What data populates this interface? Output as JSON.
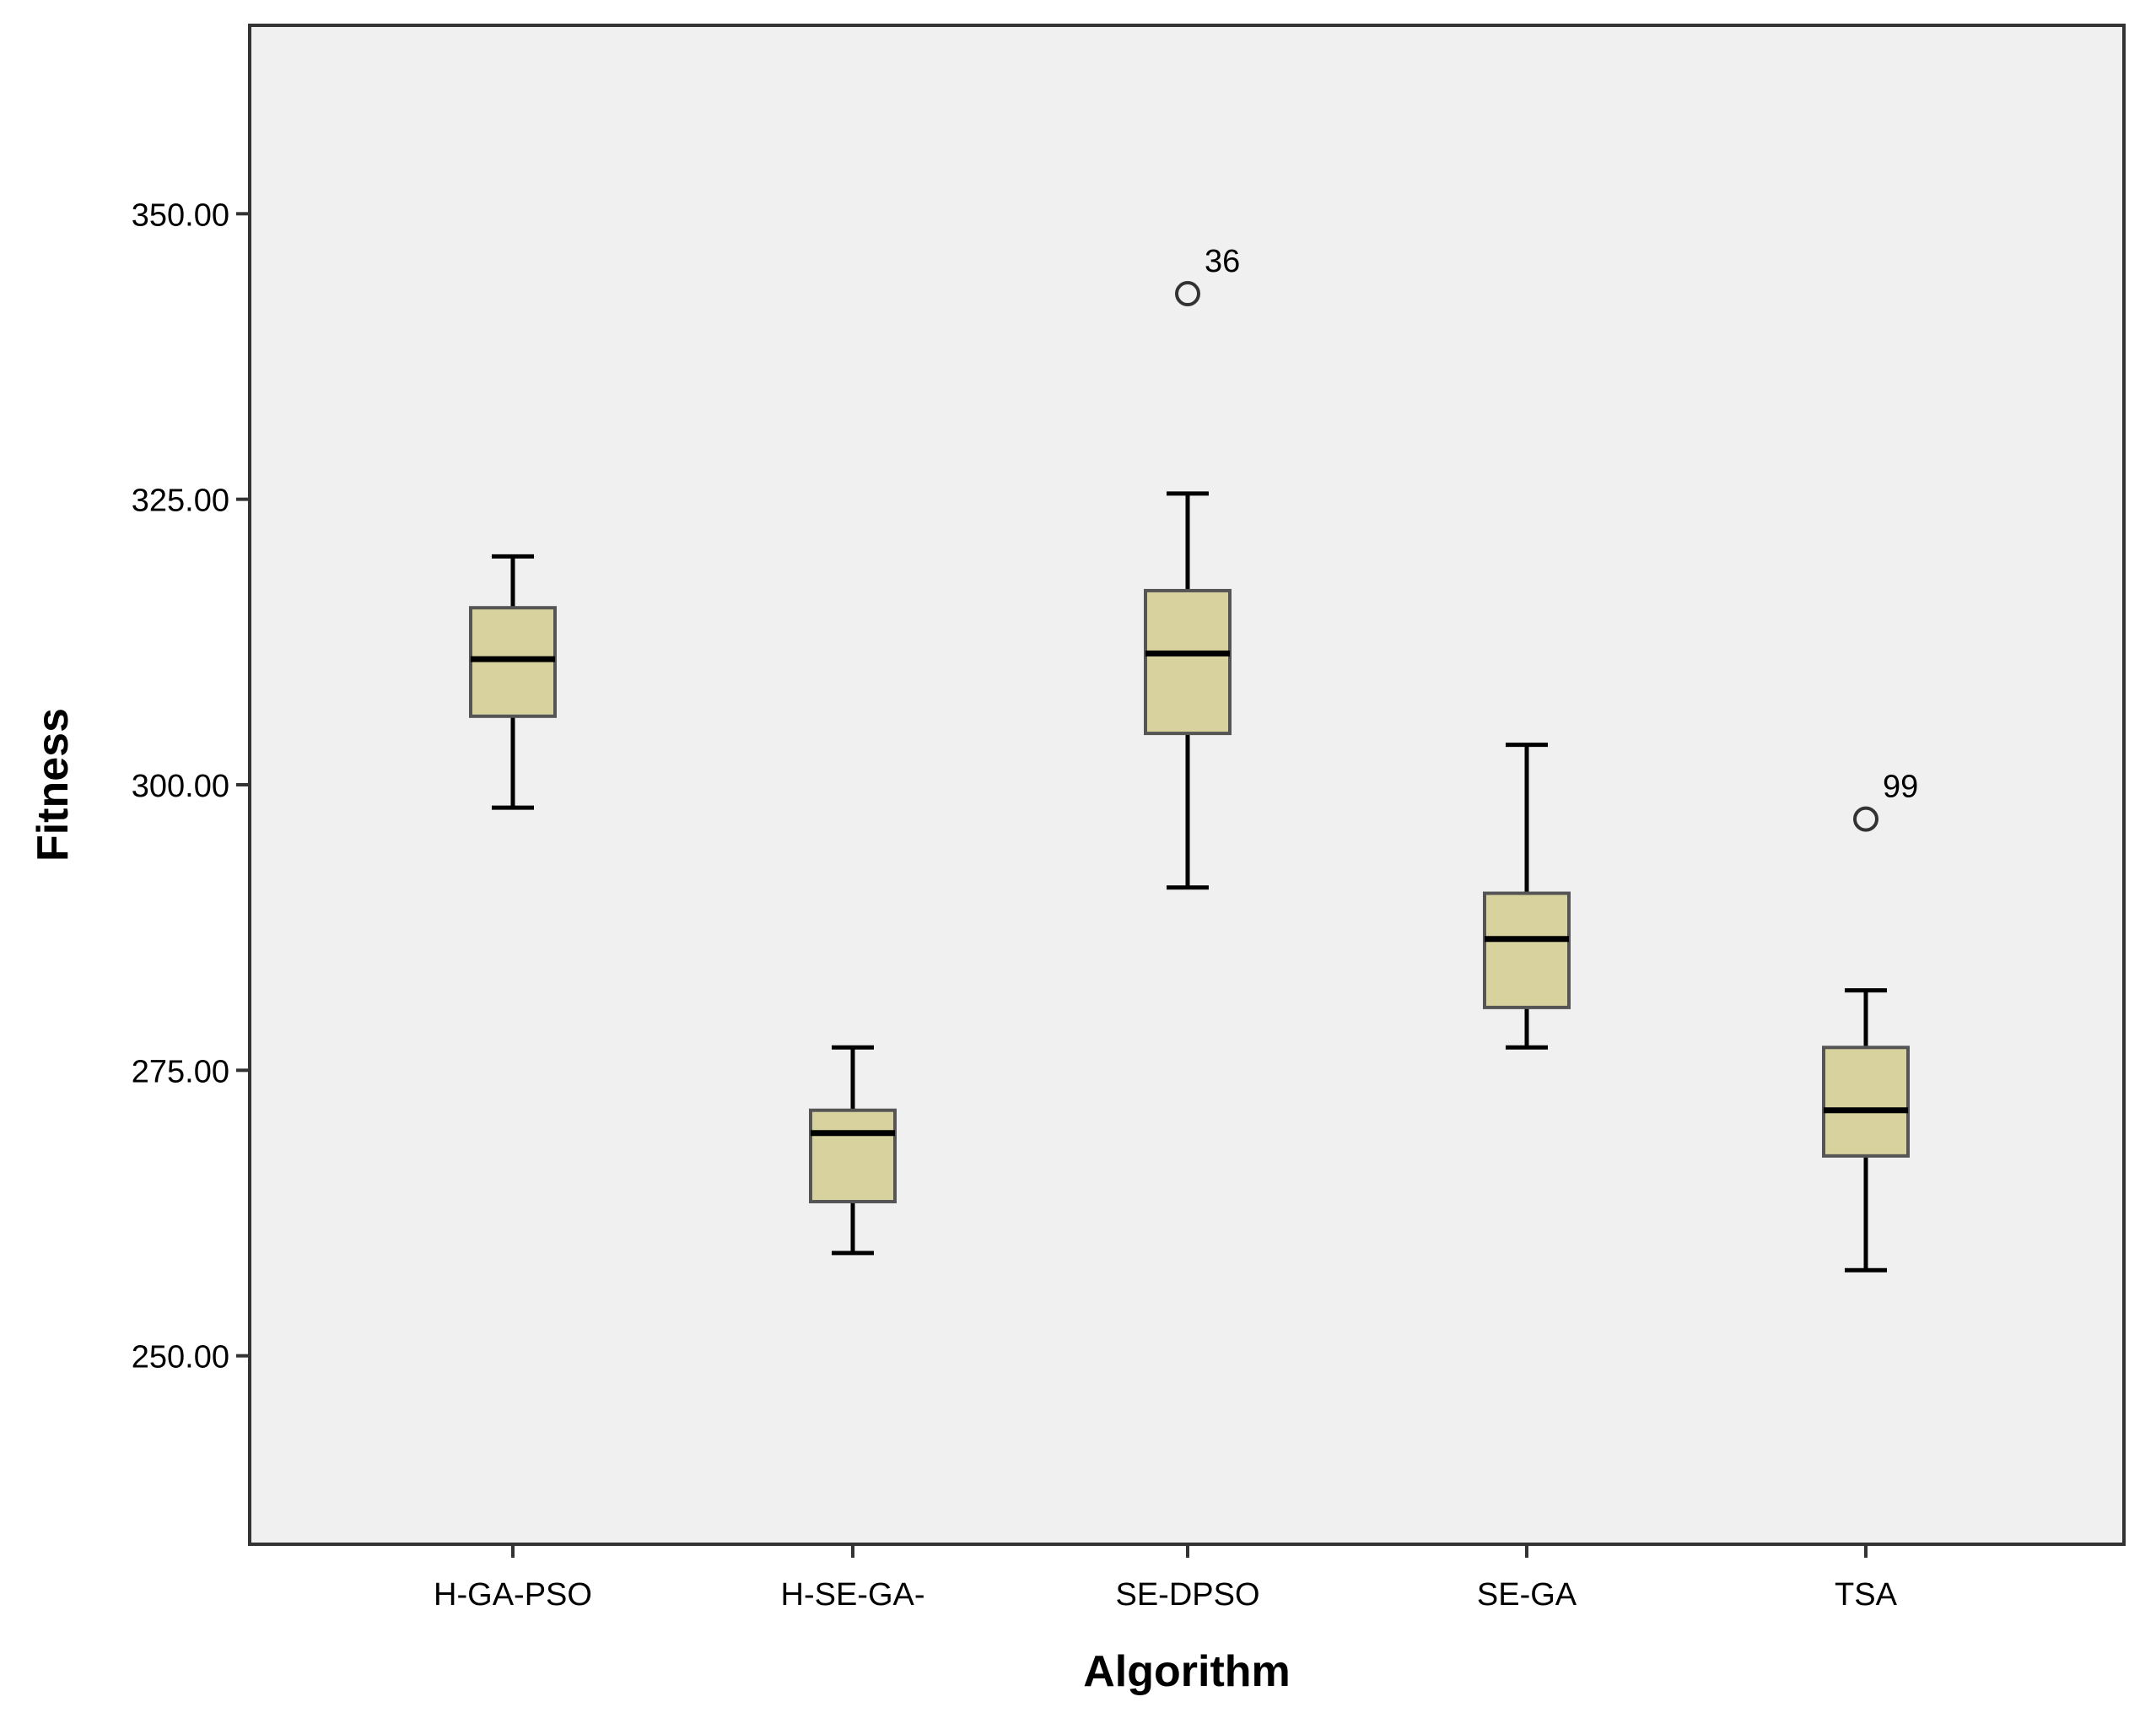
{
  "chart_data": {
    "type": "boxplot",
    "title": "",
    "xlabel": "Algorithm",
    "ylabel": "Fitness",
    "ylim": [
      233.5,
      366.5
    ],
    "yticks": [
      250,
      275,
      300,
      325,
      350
    ],
    "ytick_labels": [
      "250.00",
      "275.00",
      "300.00",
      "325.00",
      "350.00"
    ],
    "grid": false,
    "box_color": "#d7d29e",
    "plot_background": "#f0f0f0",
    "categories": [
      "H-GA-PSO",
      "H-SE-GA-",
      "SE-DPSO",
      "SE-GA",
      "TSA"
    ],
    "boxes": [
      {
        "category": "H-GA-PSO",
        "whisker_low": 298,
        "q1": 306,
        "median": 311,
        "q3": 315.5,
        "whisker_high": 320,
        "outliers": []
      },
      {
        "category": "H-SE-GA-",
        "whisker_low": 259,
        "q1": 263.5,
        "median": 269.5,
        "q3": 271.5,
        "whisker_high": 277,
        "outliers": []
      },
      {
        "category": "SE-DPSO",
        "whisker_low": 291,
        "q1": 304.5,
        "median": 311.5,
        "q3": 317,
        "whisker_high": 325.5,
        "outliers": [
          {
            "value": 343,
            "label": "36"
          }
        ]
      },
      {
        "category": "SE-GA",
        "whisker_low": 277,
        "q1": 280.5,
        "median": 286.5,
        "q3": 290.5,
        "whisker_high": 303.5,
        "outliers": []
      },
      {
        "category": "TSA",
        "whisker_low": 257.5,
        "q1": 267.5,
        "median": 271.5,
        "q3": 277,
        "whisker_high": 282,
        "outliers": [
          {
            "value": 297,
            "label": "99"
          }
        ]
      }
    ]
  }
}
